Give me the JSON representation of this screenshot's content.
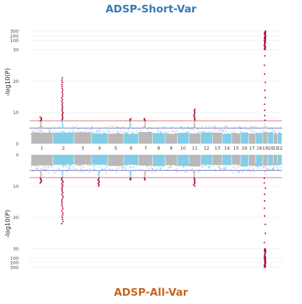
{
  "chart_data": {
    "type": "scatter",
    "subtype": "miami-plot",
    "top_panel": {
      "title": "ADSP-Short-Var",
      "ylabel": "-log10(P)",
      "yaxis_ticks": [
        "0",
        "10",
        "20",
        "30",
        "100",
        "200",
        "300"
      ],
      "peaks": [
        {
          "chrom": "1",
          "value": 8.5
        },
        {
          "chrom": "2",
          "value": 21
        },
        {
          "chrom": "6",
          "value": 8
        },
        {
          "chrom": "7",
          "value": 8
        },
        {
          "chrom": "11",
          "value": 11
        },
        {
          "chrom": "19",
          "value": 300
        }
      ]
    },
    "bottom_panel": {
      "title": "ADSP-All-Var",
      "ylabel": "-log10(P)",
      "yaxis_ticks": [
        "0",
        "10",
        "20",
        "30",
        "100",
        "200",
        "300"
      ],
      "peaks": [
        {
          "chrom": "1",
          "value": 9
        },
        {
          "chrom": "2",
          "value": 22
        },
        {
          "chrom": "4",
          "value": 10
        },
        {
          "chrom": "6",
          "value": 8
        },
        {
          "chrom": "7",
          "value": 8
        },
        {
          "chrom": "11",
          "value": 10
        },
        {
          "chrom": "19",
          "value": 300
        }
      ]
    },
    "chromosomes": [
      "1",
      "2",
      "3",
      "4",
      "5",
      "6",
      "7",
      "8",
      "9",
      "10",
      "11",
      "12",
      "13",
      "14",
      "15",
      "16",
      "17",
      "18",
      "19",
      "20",
      "21",
      "22"
    ],
    "thresholds": {
      "genome_wide": 7.3,
      "suggestive": 5
    },
    "colors": {
      "odd_chrom": "#b9b9b9",
      "even_chrom": "#84cde8",
      "genome_wide_line": "#e05a5a",
      "suggestive_line": "#5b5fc7",
      "hit": "#b0143c",
      "top_title": "#3a78b8",
      "bottom_title": "#c9641f"
    }
  }
}
